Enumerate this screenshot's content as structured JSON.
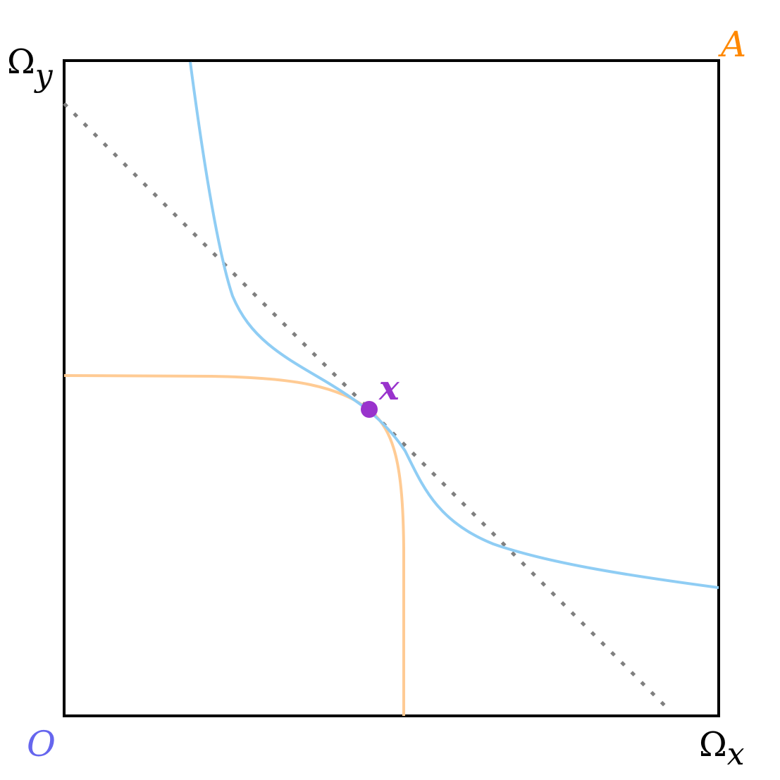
{
  "labels": {
    "omega_y": "Ω",
    "omega_y_sub": "y",
    "omega_x": "Ω",
    "omega_x_sub": "x",
    "origin_o": "O",
    "origin_a": "A",
    "point_x": "x"
  },
  "colors": {
    "frame": "#000000",
    "blue_curve": "#8fcdf4",
    "orange_curve": "#ffcb94",
    "budget_line": "#7f7f7f",
    "point": "#9933cc",
    "origin_o": "#6666ee",
    "origin_a": "#ff8800",
    "text": "#000000"
  }
}
